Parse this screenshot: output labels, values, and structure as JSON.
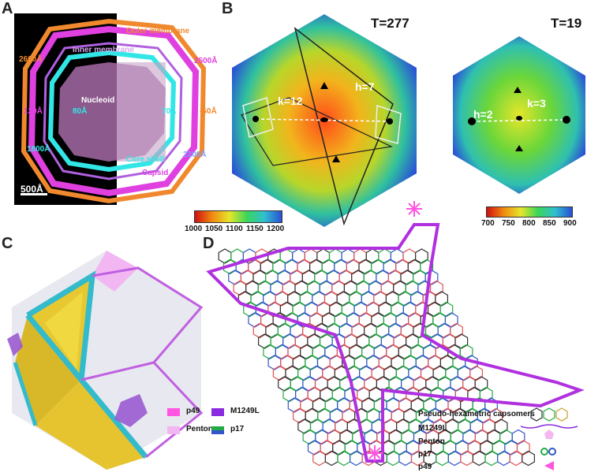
{
  "panels": {
    "a": {
      "letter": "A",
      "labels": {
        "outer_membrane": "Outer membrane",
        "inner_membrane": "Inner membrane",
        "nucleoid": "Nucleoid",
        "core_shell": "Core shell",
        "capsid": "Capsid",
        "d2600": "2600Å",
        "d2500": "2500Å",
        "d130": "130Å",
        "d80": "80Å",
        "d70": "70Å",
        "d50": "-50Å",
        "d1800": "1800Å",
        "d2200": "2200Å",
        "scale": "500Å"
      },
      "colors": {
        "outer": "#f0892e",
        "inner": "#e040e0",
        "core": "#33e6e6",
        "nucleoid": "#c77fc7"
      }
    },
    "b": {
      "letter": "B",
      "t277": "T=277",
      "t19": "T=19",
      "k12": "k=12",
      "h7": "h=7",
      "h2": "h=2",
      "k3": "k=3",
      "colorbar1_ticks": [
        "1000",
        "1050",
        "1100",
        "1150",
        "1200"
      ],
      "colorbar2_ticks": [
        "700",
        "750",
        "800",
        "850",
        "900"
      ]
    },
    "c": {
      "letter": "C",
      "legend": {
        "p49": "p49",
        "m1249l": "M1249L",
        "penton": "Penton",
        "p17": "p17"
      },
      "colors": {
        "p49": "#ff55e0",
        "m1249l": "#8a2be2",
        "penton": "#f4b6f0",
        "p17_a": "#22aa44",
        "p17_b": "#3355cc"
      }
    },
    "d": {
      "letter": "D",
      "legend": {
        "pseudo": "Pseudo-hexametric capsomers",
        "m1249l": "M1249L",
        "penton": "Penton",
        "p17": "p17",
        "p49": "p49"
      }
    }
  }
}
